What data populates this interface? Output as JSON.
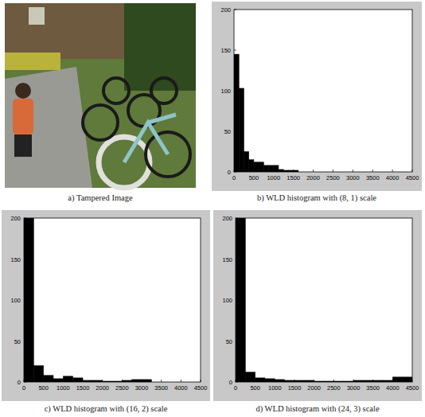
{
  "image": {
    "caption": "a) Tampered Image"
  },
  "chart_data": [
    {
      "type": "histogram",
      "title": "b) WLD histogram with (8, 1) scale",
      "bins": [
        0,
        125,
        250,
        375,
        500,
        625,
        750,
        875,
        1000,
        1125,
        1250,
        1375,
        1500,
        1625
      ],
      "values": [
        145,
        103,
        25,
        15,
        12,
        12,
        8,
        8,
        8,
        3,
        2,
        2,
        2
      ],
      "color": "#000000",
      "xlim": [
        0,
        4500
      ],
      "xticks": [
        0,
        500,
        1000,
        1500,
        2000,
        2500,
        3000,
        3500,
        4000,
        4500
      ],
      "ylim": [
        0,
        200
      ],
      "yticks": [
        0,
        50,
        100,
        150,
        200
      ]
    },
    {
      "type": "histogram",
      "title": "c) WLD histogram with (16, 2) scale",
      "bins": [
        0,
        250,
        500,
        750,
        1000,
        1250,
        1500,
        1750,
        2000,
        2250,
        2500,
        2750,
        3000,
        3250,
        3500
      ],
      "values": [
        200,
        20,
        8,
        4,
        7,
        5,
        2,
        2,
        1,
        1,
        2,
        3,
        3,
        0
      ],
      "color": "#000000",
      "xlim": [
        0,
        4500
      ],
      "xticks": [
        0,
        500,
        1000,
        1500,
        2000,
        2500,
        3000,
        3500,
        4000,
        4500
      ],
      "ylim": [
        0,
        200
      ],
      "yticks": [
        0,
        50,
        100,
        150,
        200
      ]
    },
    {
      "type": "histogram",
      "title": "d) WLD histogram with (24, 3) scale",
      "bins": [
        0,
        250,
        500,
        750,
        1000,
        1250,
        1500,
        1750,
        2000,
        2250,
        2500,
        2750,
        3000,
        3250,
        3500,
        3750,
        4000,
        4250,
        4500
      ],
      "values": [
        200,
        12,
        5,
        4,
        3,
        2,
        2,
        2,
        1,
        1,
        1,
        1,
        2,
        2,
        2,
        2,
        6,
        6
      ],
      "color": "#000000",
      "xlim": [
        0,
        4500
      ],
      "xticks": [
        0,
        500,
        1000,
        1500,
        2000,
        2500,
        3000,
        3500,
        4000,
        4500
      ],
      "ylim": [
        0,
        200
      ],
      "yticks": [
        0,
        50,
        100,
        150,
        200
      ]
    }
  ]
}
